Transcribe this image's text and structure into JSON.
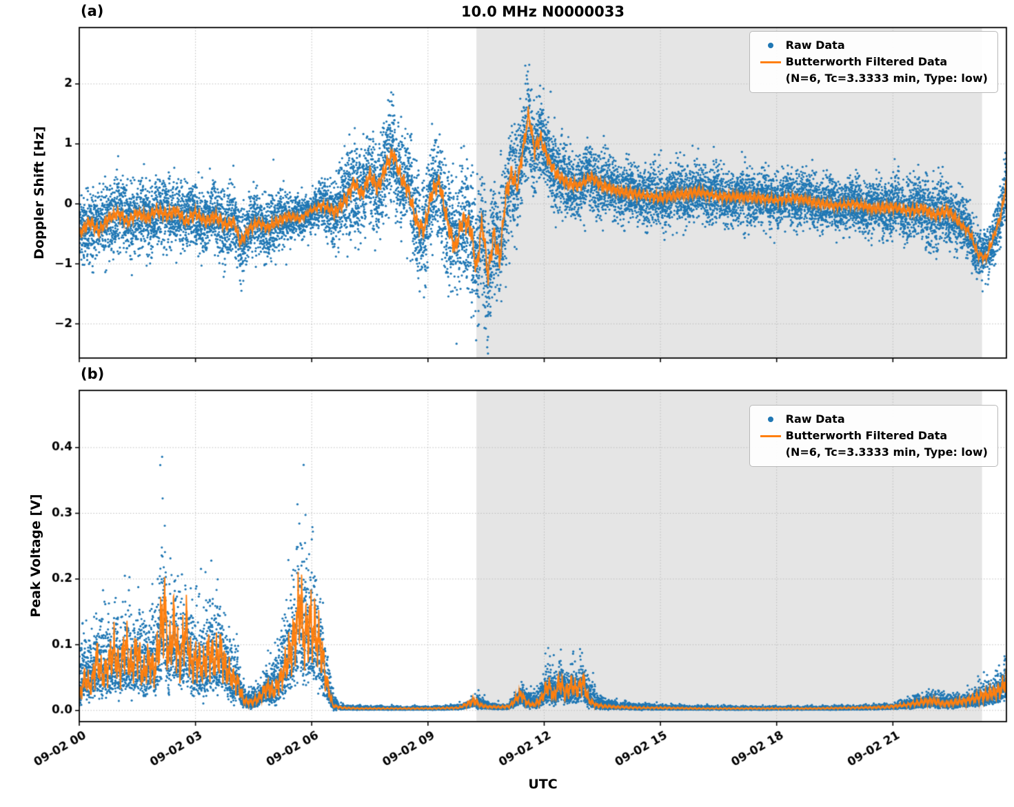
{
  "figure": {
    "title": "10.0 MHz N0000033",
    "xlabel": "UTC",
    "panel_a_label": "(a)",
    "panel_b_label": "(b)",
    "legend": {
      "raw_label": "Raw Data",
      "filtered_label": "Butterworth Filtered Data",
      "filtered_sublabel": "(N=6, Tc=3.3333 min, Type: low)"
    },
    "colors": {
      "raw": "#1f77b4",
      "filtered": "#ff7f0e",
      "shade": "rgba(168,168,168,0.30)",
      "grid": "#b8b8b8",
      "axis": "#000000"
    }
  },
  "chart_data": [
    {
      "type": "scatter",
      "panel": "a",
      "title": "10.0 MHz N0000033",
      "ylabel": "Doppler Shift [Hz]",
      "xlabel": "UTC",
      "xlim": [
        0,
        23.93
      ],
      "ylim": [
        -2.57,
        2.94
      ],
      "xticks": [
        0,
        3,
        6,
        9,
        12,
        15,
        18,
        21
      ],
      "xtick_labels": [
        "09-02 00",
        "09-02 03",
        "09-02 06",
        "09-02 09",
        "09-02 12",
        "09-02 15",
        "09-02 18",
        "09-02 21"
      ],
      "show_xtick_labels": false,
      "yticks": [
        -2,
        -1,
        0,
        1,
        2
      ],
      "ytick_labels": [
        "−2",
        "−1",
        "0",
        "1",
        "2"
      ],
      "shaded_region_hours": [
        10.25,
        23.3
      ],
      "grid": true,
      "legend_position": "upper right",
      "positive_only": false,
      "seed": 42,
      "n_points": 14000,
      "series": [
        {
          "name": "Raw Data",
          "style": "scatter",
          "color": "#1f77b4"
        },
        {
          "name": "Butterworth Filtered Data (N=6, Tc=3.3333 min, Type: low)",
          "style": "line",
          "color": "#ff7f0e",
          "keypoints": {
            "t": [
              0,
              0.25,
              0.5,
              0.75,
              1.0,
              1.25,
              1.5,
              1.75,
              2.0,
              2.25,
              2.5,
              2.75,
              3.0,
              3.25,
              3.5,
              3.75,
              4.0,
              4.15,
              4.35,
              4.6,
              4.85,
              5.1,
              5.4,
              5.7,
              6.0,
              6.3,
              6.6,
              6.9,
              7.1,
              7.3,
              7.5,
              7.7,
              7.9,
              8.1,
              8.3,
              8.5,
              8.7,
              8.9,
              9.1,
              9.3,
              9.5,
              9.7,
              9.9,
              10.1,
              10.25,
              10.4,
              10.55,
              10.7,
              10.85,
              11.0,
              11.15,
              11.3,
              11.45,
              11.6,
              11.75,
              11.9,
              12.1,
              12.3,
              12.6,
              12.9,
              13.2,
              13.5,
              14.0,
              14.5,
              15.0,
              15.5,
              16.0,
              16.5,
              17.0,
              17.5,
              18.0,
              18.5,
              19.0,
              19.5,
              20.0,
              20.5,
              21.0,
              21.4,
              21.8,
              22.1,
              22.4,
              22.7,
              23.0,
              23.2,
              23.4,
              23.6,
              23.8,
              23.93
            ],
            "v": [
              -0.5,
              -0.3,
              -0.45,
              -0.25,
              -0.15,
              -0.3,
              -0.15,
              -0.25,
              -0.1,
              -0.2,
              -0.1,
              -0.3,
              -0.15,
              -0.3,
              -0.2,
              -0.35,
              -0.3,
              -0.65,
              -0.45,
              -0.3,
              -0.4,
              -0.3,
              -0.2,
              -0.25,
              -0.1,
              -0.02,
              -0.15,
              0.1,
              0.35,
              0.15,
              0.5,
              0.25,
              0.6,
              0.85,
              0.45,
              0.2,
              -0.3,
              -0.45,
              0.2,
              0.35,
              -0.3,
              -0.75,
              -0.25,
              -0.4,
              -1.1,
              -0.3,
              -1.2,
              -0.5,
              -0.95,
              0.1,
              0.5,
              0.3,
              0.9,
              1.5,
              0.9,
              1.1,
              0.75,
              0.5,
              0.35,
              0.3,
              0.45,
              0.3,
              0.2,
              0.15,
              0.1,
              0.15,
              0.2,
              0.12,
              0.12,
              0.1,
              0.06,
              0.1,
              0.02,
              -0.03,
              0.0,
              -0.08,
              -0.05,
              -0.12,
              -0.08,
              -0.2,
              -0.1,
              -0.3,
              -0.5,
              -0.85,
              -0.9,
              -0.55,
              -0.15,
              0.35
            ]
          }
        }
      ],
      "raw_spread": {
        "t": [
          0,
          2,
          4,
          5,
          6,
          6.5,
          7,
          8,
          8.7,
          9.3,
          9.7,
          10.1,
          10.6,
          11.0,
          11.5,
          12.0,
          12.5,
          13,
          14,
          16,
          18,
          20,
          21,
          22,
          22.7,
          23.3,
          23.93
        ],
        "v": [
          0.28,
          0.3,
          0.28,
          0.25,
          0.15,
          0.3,
          0.38,
          0.4,
          0.42,
          0.45,
          0.5,
          0.55,
          0.55,
          0.5,
          0.45,
          0.35,
          0.3,
          0.28,
          0.25,
          0.25,
          0.22,
          0.22,
          0.25,
          0.28,
          0.25,
          0.2,
          0.25
        ]
      }
    },
    {
      "type": "scatter",
      "panel": "b",
      "ylabel": "Peak Voltage [V]",
      "xlabel": "UTC",
      "xlim": [
        0,
        23.93
      ],
      "ylim": [
        -0.017,
        0.487
      ],
      "xticks": [
        0,
        3,
        6,
        9,
        12,
        15,
        18,
        21
      ],
      "xtick_labels": [
        "09-02 00",
        "09-02 03",
        "09-02 06",
        "09-02 09",
        "09-02 12",
        "09-02 15",
        "09-02 18",
        "09-02 21"
      ],
      "show_xtick_labels": true,
      "yticks": [
        0.0,
        0.1,
        0.2,
        0.3,
        0.4
      ],
      "ytick_labels": [
        "0.0",
        "0.1",
        "0.2",
        "0.3",
        "0.4"
      ],
      "shaded_region_hours": [
        10.25,
        23.3
      ],
      "grid": true,
      "legend_position": "upper right",
      "positive_only": true,
      "seed": 7,
      "n_points": 14000,
      "series": [
        {
          "name": "Raw Data",
          "style": "scatter",
          "color": "#1f77b4"
        },
        {
          "name": "Butterworth Filtered Data (N=6, Tc=3.3333 min, Type: low)",
          "style": "line",
          "color": "#ff7f0e",
          "keypoints": {
            "t": [
              0,
              0.15,
              0.3,
              0.45,
              0.6,
              0.75,
              0.9,
              1.05,
              1.2,
              1.35,
              1.5,
              1.65,
              1.8,
              1.95,
              2.1,
              2.2,
              2.3,
              2.45,
              2.6,
              2.75,
              2.9,
              3.05,
              3.2,
              3.35,
              3.5,
              3.65,
              3.8,
              3.95,
              4.1,
              4.25,
              4.45,
              4.65,
              4.85,
              5.05,
              5.25,
              5.45,
              5.6,
              5.7,
              5.8,
              5.95,
              6.1,
              6.25,
              6.4,
              6.55,
              6.8,
              7.2,
              8.0,
              9.0,
              9.8,
              10.2,
              10.35,
              10.5,
              10.8,
              11.1,
              11.4,
              11.55,
              11.7,
              11.9,
              12.1,
              12.25,
              12.4,
              12.55,
              12.7,
              12.85,
              13.0,
              13.15,
              13.35,
              13.6,
              14.0,
              14.5,
              15.0,
              16.0,
              17.0,
              18.0,
              19.0,
              20.0,
              20.8,
              21.3,
              21.7,
              22.0,
              22.3,
              22.6,
              22.9,
              23.2,
              23.5,
              23.75,
              23.93
            ],
            "v": [
              0.02,
              0.05,
              0.035,
              0.08,
              0.05,
              0.07,
              0.09,
              0.06,
              0.1,
              0.065,
              0.09,
              0.055,
              0.075,
              0.06,
              0.12,
              0.16,
              0.08,
              0.13,
              0.07,
              0.13,
              0.065,
              0.08,
              0.065,
              0.09,
              0.075,
              0.09,
              0.06,
              0.05,
              0.04,
              0.015,
              0.012,
              0.02,
              0.035,
              0.03,
              0.055,
              0.09,
              0.12,
              0.17,
              0.11,
              0.13,
              0.12,
              0.09,
              0.04,
              0.007,
              0.004,
              0.003,
              0.003,
              0.003,
              0.004,
              0.015,
              0.008,
              0.006,
              0.005,
              0.006,
              0.025,
              0.012,
              0.008,
              0.015,
              0.04,
              0.02,
              0.045,
              0.025,
              0.04,
              0.03,
              0.045,
              0.015,
              0.008,
              0.006,
              0.005,
              0.004,
              0.004,
              0.003,
              0.003,
              0.003,
              0.003,
              0.004,
              0.005,
              0.008,
              0.012,
              0.015,
              0.01,
              0.012,
              0.015,
              0.02,
              0.025,
              0.03,
              0.045
            ]
          }
        }
      ],
      "raw_spread": {
        "t": [
          0,
          0.5,
          1.0,
          1.5,
          2.0,
          2.15,
          2.3,
          2.6,
          3.0,
          3.5,
          4.0,
          4.3,
          4.7,
          5.0,
          5.3,
          5.6,
          5.9,
          6.2,
          6.45,
          6.7,
          7.5,
          9.0,
          10.0,
          10.3,
          10.6,
          11.0,
          11.5,
          11.8,
          12.2,
          12.6,
          13.0,
          13.4,
          14.0,
          15.0,
          17.0,
          19.0,
          21.0,
          21.6,
          22.2,
          22.8,
          23.3,
          23.93
        ],
        "v": [
          0.045,
          0.05,
          0.05,
          0.05,
          0.055,
          0.12,
          0.06,
          0.06,
          0.05,
          0.06,
          0.04,
          0.01,
          0.015,
          0.03,
          0.05,
          0.08,
          0.09,
          0.06,
          0.02,
          0.003,
          0.002,
          0.002,
          0.003,
          0.008,
          0.004,
          0.003,
          0.012,
          0.01,
          0.028,
          0.022,
          0.028,
          0.008,
          0.004,
          0.003,
          0.002,
          0.002,
          0.003,
          0.008,
          0.01,
          0.008,
          0.015,
          0.022
        ]
      }
    }
  ]
}
